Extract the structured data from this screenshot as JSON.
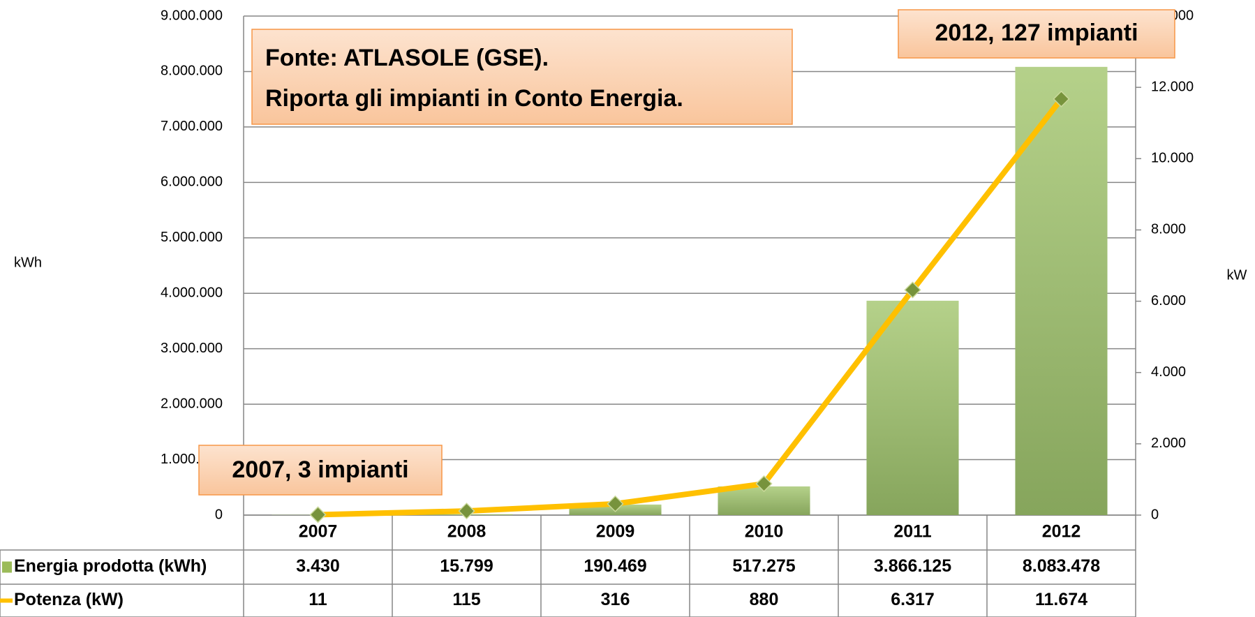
{
  "chart_data": {
    "type": "bar_line",
    "categories": [
      "2007",
      "2008",
      "2009",
      "2010",
      "2011",
      "2012"
    ],
    "series": [
      {
        "name": "Energia prodotta (kWh)",
        "type": "bar",
        "color": "#9bbb59",
        "values": [
          3430,
          15799,
          190469,
          517275,
          3866125,
          8083478
        ],
        "value_labels": [
          "3.430",
          "15.799",
          "190.469",
          "517.275",
          "3.866.125",
          "8.083.478"
        ]
      },
      {
        "name": "Potenza (kW)",
        "type": "line",
        "axis": "y2",
        "color": "#ffc000",
        "marker_color": "#77933c",
        "values": [
          11,
          115,
          316,
          880,
          6317,
          11674
        ],
        "value_labels": [
          "11",
          "115",
          "316",
          "880",
          "6.317",
          "11.674"
        ]
      }
    ],
    "y_label": "kWh",
    "y2_label": "kW",
    "ylim": [
      0,
      9000000
    ],
    "yticks": [
      0,
      {
        "value": 1000000,
        "label": "1.000.000"
      },
      {
        "value": 2000000,
        "label": "2.000.000"
      },
      {
        "value": 3000000,
        "label": "3.000.000"
      },
      {
        "value": 4000000,
        "label": "4.000.000"
      },
      {
        "value": 5000000,
        "label": "5.000.000"
      },
      {
        "value": 6000000,
        "label": "6.000.000"
      },
      {
        "value": 7000000,
        "label": "7.000.000"
      },
      {
        "value": 8000000,
        "label": "8.000.000"
      },
      {
        "value": 9000000,
        "label": "9.000.000"
      }
    ],
    "y2lim": [
      0,
      14000
    ],
    "y2ticks": [
      0,
      {
        "value": 2000,
        "label": "2.000"
      },
      {
        "value": 4000,
        "label": "4.000"
      },
      {
        "value": 6000,
        "label": "6.000"
      },
      {
        "value": 8000,
        "label": "8.000"
      },
      {
        "value": 10000,
        "label": "10.000"
      },
      {
        "value": 12000,
        "label": "12.000"
      },
      {
        "value": 14000,
        "label": "14.000"
      }
    ],
    "grid": true,
    "annotations": [
      "Fonte: ATLASOLE (GSE).",
      "Riporta gli impianti in Conto Energia.",
      "2012, 127 impianti",
      "2007, 3 impianti"
    ]
  }
}
